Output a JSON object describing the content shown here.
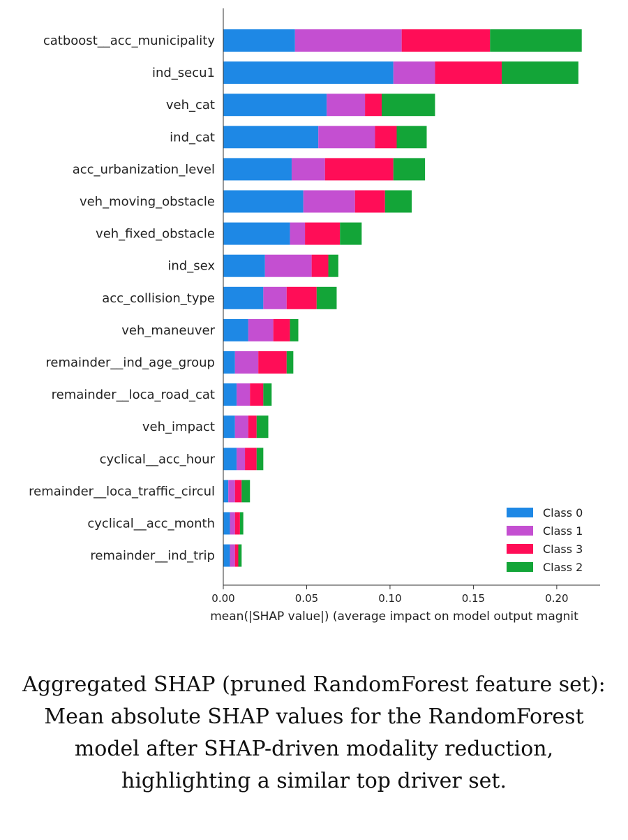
{
  "chart_data": {
    "type": "bar",
    "orientation": "horizontal",
    "stacked": true,
    "xlabel": "mean(|SHAP value|) (average impact on model output magnit",
    "x_ticks": [
      "0.00",
      "0.05",
      "0.10",
      "0.15",
      "0.20"
    ],
    "xlim": [
      0,
      0.226
    ],
    "categories": [
      "catboost__acc_municipality",
      "ind_secu1",
      "veh_cat",
      "ind_cat",
      "acc_urbanization_level",
      "veh_moving_obstacle",
      "veh_fixed_obstacle",
      "ind_sex",
      "acc_collision_type",
      "veh_maneuver",
      "remainder__ind_age_group",
      "remainder__loca_road_cat",
      "veh_impact",
      "cyclical__acc_hour",
      "remainder__loca_traffic_circul",
      "cyclical__acc_month",
      "remainder__ind_trip"
    ],
    "series": [
      {
        "name": "Class 0",
        "color": "#1e88e5",
        "values": [
          0.043,
          0.102,
          0.062,
          0.057,
          0.041,
          0.048,
          0.04,
          0.025,
          0.024,
          0.015,
          0.007,
          0.008,
          0.007,
          0.008,
          0.003,
          0.004,
          0.004
        ]
      },
      {
        "name": "Class 1",
        "color": "#c44fd1",
        "values": [
          0.064,
          0.025,
          0.023,
          0.034,
          0.02,
          0.031,
          0.009,
          0.028,
          0.014,
          0.015,
          0.014,
          0.008,
          0.008,
          0.005,
          0.004,
          0.003,
          0.003
        ]
      },
      {
        "name": "Class 3",
        "color": "#ff0d57",
        "values": [
          0.053,
          0.04,
          0.01,
          0.013,
          0.041,
          0.018,
          0.021,
          0.01,
          0.018,
          0.01,
          0.017,
          0.008,
          0.005,
          0.007,
          0.004,
          0.003,
          0.002
        ]
      },
      {
        "name": "Class 2",
        "color": "#13a538",
        "values": [
          0.055,
          0.046,
          0.032,
          0.018,
          0.019,
          0.016,
          0.013,
          0.006,
          0.012,
          0.005,
          0.004,
          0.005,
          0.007,
          0.004,
          0.005,
          0.002,
          0.002
        ]
      }
    ],
    "legend_order": [
      "Class 0",
      "Class 1",
      "Class 3",
      "Class 2"
    ],
    "legend_position": "bottom-right"
  },
  "caption": "Aggregated SHAP (pruned RandomForest feature set): Mean absolute SHAP values for the RandomForest model after SHAP-driven modality reduction, highlighting a similar top driver set."
}
